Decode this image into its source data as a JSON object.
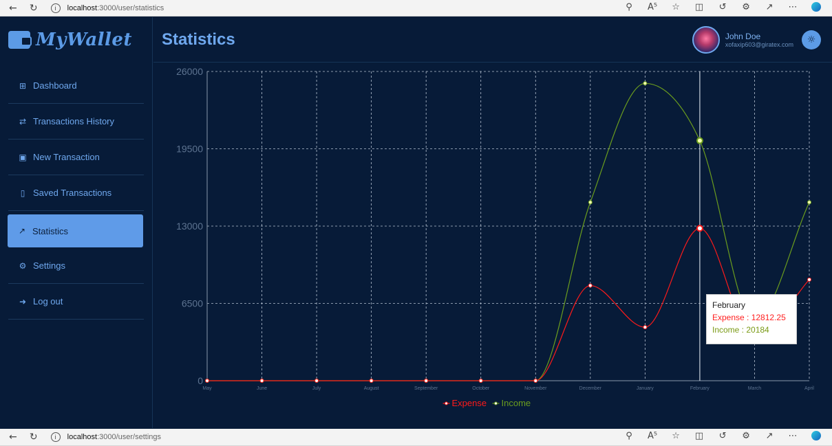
{
  "browser_top": {
    "host": "localhost",
    "path": ":3000/user/statistics"
  },
  "browser_bottom": {
    "host": "localhost",
    "path": ":3000/user/settings"
  },
  "app": {
    "logo": "MyWallet",
    "page_title": "Statistics"
  },
  "sidebar": {
    "items": [
      {
        "label": "Dashboard",
        "icon": "grid-icon",
        "active": false
      },
      {
        "label": "Transactions History",
        "icon": "swap-icon",
        "active": false
      },
      {
        "label": "New Transaction",
        "icon": "calendar-plus-icon",
        "active": false
      },
      {
        "label": "Saved Transactions",
        "icon": "bookmark-icon",
        "active": false
      },
      {
        "label": "Statistics",
        "icon": "chart-line-icon",
        "active": true
      },
      {
        "label": "Settings",
        "icon": "gear-icon",
        "active": false
      },
      {
        "label": "Log out",
        "icon": "logout-icon",
        "active": false
      }
    ]
  },
  "user": {
    "name": "John Doe",
    "email": "xofaxip603@giratex.com"
  },
  "tooltip": {
    "title": "February",
    "expense": "Expense : 12812.25",
    "income": "Income : 20184"
  },
  "colors": {
    "expense": "#ff1a1a",
    "income": "#6b9d1e",
    "accent": "#5f9be8",
    "background": "#071b38"
  },
  "chart_data": {
    "type": "line",
    "categories": [
      "May",
      "June",
      "July",
      "August",
      "September",
      "October",
      "November",
      "December",
      "January",
      "February",
      "March",
      "April"
    ],
    "series": [
      {
        "name": "Expense",
        "values": [
          0,
          0,
          0,
          0,
          0,
          0,
          0,
          8000,
          4500,
          12812.25,
          3500,
          8500
        ]
      },
      {
        "name": "Income",
        "values": [
          0,
          0,
          0,
          0,
          0,
          0,
          0,
          15000,
          25000,
          20184,
          5000,
          15000
        ]
      }
    ],
    "yticks": [
      "0",
      "6500",
      "13000",
      "19500",
      "26000"
    ],
    "ylim": [
      0,
      26000
    ],
    "grid": true,
    "legend": "bottom"
  }
}
